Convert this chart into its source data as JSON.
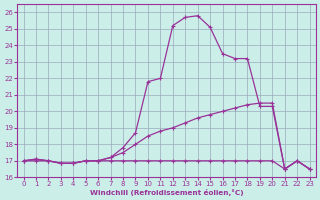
{
  "xlabel": "Windchill (Refroidissement éolien,°C)",
  "xlim": [
    -0.5,
    23.5
  ],
  "ylim": [
    16,
    26.5
  ],
  "yticks": [
    16,
    17,
    18,
    19,
    20,
    21,
    22,
    23,
    24,
    25,
    26
  ],
  "xticks": [
    0,
    1,
    2,
    3,
    4,
    5,
    6,
    7,
    8,
    9,
    10,
    11,
    12,
    13,
    14,
    15,
    16,
    17,
    18,
    19,
    20,
    21,
    22,
    23
  ],
  "bg_color": "#cceee8",
  "line_color": "#993399",
  "grid_color": "#99aabb",
  "line1_x": [
    0,
    1,
    2,
    3,
    4,
    5,
    6,
    7,
    8,
    9,
    10,
    11,
    12,
    13,
    14,
    15,
    16,
    17,
    18,
    19,
    20,
    21,
    22,
    23
  ],
  "line1_y": [
    17.0,
    17.1,
    17.0,
    16.85,
    16.85,
    17.0,
    17.0,
    17.2,
    17.8,
    18.7,
    21.8,
    22.0,
    25.2,
    25.7,
    25.8,
    25.1,
    23.5,
    23.2,
    23.2,
    20.3,
    20.3,
    16.5,
    17.0,
    16.5
  ],
  "line2_x": [
    0,
    1,
    2,
    3,
    4,
    5,
    6,
    7,
    8,
    9,
    10,
    11,
    12,
    13,
    14,
    15,
    16,
    17,
    18,
    19,
    20,
    21,
    22,
    23
  ],
  "line2_y": [
    17.0,
    17.1,
    17.0,
    16.85,
    16.85,
    17.0,
    17.0,
    17.2,
    17.5,
    18.0,
    18.5,
    18.8,
    19.0,
    19.3,
    19.6,
    19.8,
    20.0,
    20.2,
    20.4,
    20.5,
    20.5,
    16.5,
    17.0,
    16.5
  ],
  "line3_x": [
    0,
    1,
    2,
    3,
    4,
    5,
    6,
    7,
    8,
    9,
    10,
    11,
    12,
    13,
    14,
    15,
    16,
    17,
    18,
    19,
    20,
    21,
    22,
    23
  ],
  "line3_y": [
    17.0,
    17.0,
    17.0,
    16.85,
    16.85,
    17.0,
    17.0,
    17.0,
    17.0,
    17.0,
    17.0,
    17.0,
    17.0,
    17.0,
    17.0,
    17.0,
    17.0,
    17.0,
    17.0,
    17.0,
    17.0,
    16.5,
    17.0,
    16.5
  ]
}
